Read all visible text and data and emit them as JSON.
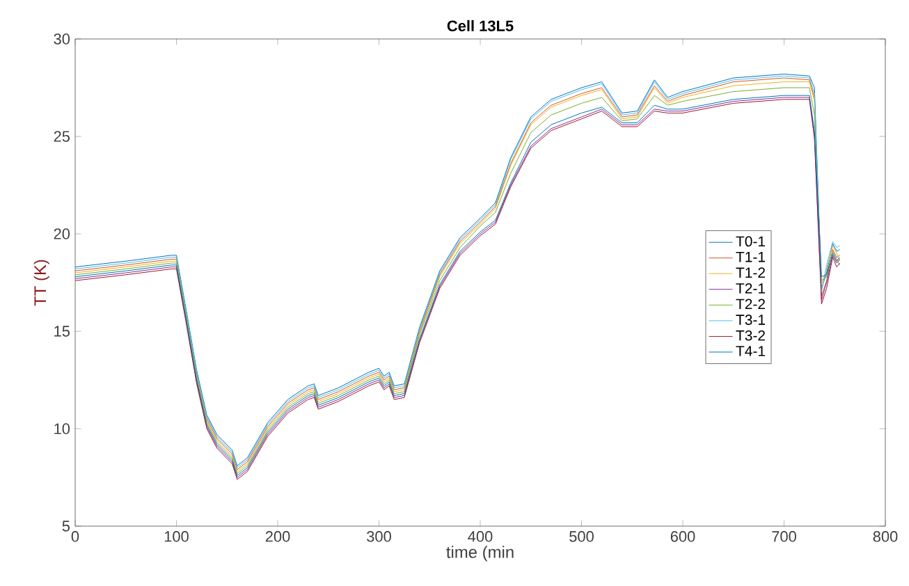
{
  "chart_data": {
    "type": "line",
    "title": "Cell 13L5",
    "xlabel": "time (min",
    "ylabel": "TT (K)",
    "xlim": [
      0,
      800
    ],
    "ylim": [
      5,
      30
    ],
    "xticks": [
      0,
      100,
      200,
      300,
      400,
      500,
      600,
      700,
      800
    ],
    "yticks": [
      5,
      10,
      15,
      20,
      25,
      30
    ],
    "grid": false,
    "legend": "right",
    "marker": "none",
    "line_style": "solid",
    "x": [
      0,
      50,
      95,
      100,
      110,
      120,
      130,
      140,
      155,
      160,
      170,
      190,
      210,
      230,
      236,
      240,
      260,
      290,
      300,
      305,
      310,
      315,
      325,
      340,
      360,
      380,
      400,
      415,
      430,
      450,
      470,
      500,
      520,
      540,
      555,
      572,
      585,
      600,
      650,
      700,
      725,
      730,
      737,
      742,
      748,
      752,
      755
    ],
    "series": [
      {
        "name": "T0-1",
        "color": "#0072bd",
        "values": [
          18.3,
          18.6,
          18.9,
          18.9,
          16.0,
          13.0,
          10.7,
          9.7,
          8.9,
          8.1,
          8.5,
          10.3,
          11.5,
          12.2,
          12.3,
          11.7,
          12.1,
          12.9,
          13.1,
          12.7,
          12.9,
          12.2,
          12.3,
          15.2,
          18.1,
          19.8,
          20.8,
          21.6,
          23.9,
          26.0,
          26.9,
          27.5,
          27.8,
          26.2,
          26.3,
          27.9,
          27.0,
          27.3,
          28.0,
          28.2,
          28.1,
          27.5,
          17.2,
          18.0,
          19.5,
          19.1,
          19.2
        ]
      },
      {
        "name": "T1-1",
        "color": "#d95319",
        "values": [
          18.1,
          18.4,
          18.7,
          18.7,
          15.8,
          12.8,
          10.5,
          9.5,
          8.7,
          7.9,
          8.3,
          10.1,
          11.3,
          12.0,
          12.1,
          11.5,
          11.9,
          12.7,
          12.9,
          12.5,
          12.7,
          12.0,
          12.1,
          15.0,
          17.9,
          19.6,
          20.6,
          21.4,
          23.6,
          25.7,
          26.6,
          27.2,
          27.5,
          26.0,
          26.1,
          27.6,
          26.8,
          27.1,
          27.8,
          28.0,
          27.9,
          27.0,
          16.8,
          17.6,
          19.2,
          18.8,
          18.9
        ]
      },
      {
        "name": "T1-2",
        "color": "#edb120",
        "values": [
          18.0,
          18.3,
          18.6,
          18.6,
          15.7,
          12.7,
          10.4,
          9.4,
          8.6,
          7.8,
          8.2,
          10.0,
          11.2,
          11.9,
          12.0,
          11.4,
          11.8,
          12.6,
          12.8,
          12.4,
          12.6,
          11.9,
          12.0,
          14.9,
          17.8,
          19.5,
          20.5,
          21.3,
          23.5,
          25.6,
          26.5,
          27.1,
          27.4,
          25.9,
          26.0,
          27.5,
          26.7,
          27.0,
          27.6,
          27.8,
          27.8,
          26.8,
          17.4,
          18.2,
          19.4,
          19.0,
          18.6
        ]
      },
      {
        "name": "T2-1",
        "color": "#7e2f8e",
        "values": [
          17.7,
          18.0,
          18.3,
          18.3,
          15.4,
          12.4,
          10.1,
          9.1,
          8.3,
          7.5,
          7.9,
          9.7,
          10.9,
          11.6,
          11.7,
          11.1,
          11.5,
          12.3,
          12.5,
          12.1,
          12.3,
          11.6,
          11.7,
          14.5,
          17.3,
          19.0,
          20.0,
          20.6,
          22.5,
          24.5,
          25.4,
          26.0,
          26.4,
          25.6,
          25.6,
          26.4,
          26.3,
          26.3,
          26.8,
          27.0,
          27.0,
          25.0,
          16.6,
          17.5,
          18.9,
          18.5,
          18.7
        ]
      },
      {
        "name": "T2-2",
        "color": "#77ac30",
        "values": [
          17.9,
          18.2,
          18.5,
          18.5,
          15.6,
          12.6,
          10.3,
          9.3,
          8.5,
          7.7,
          8.1,
          9.9,
          11.1,
          11.8,
          11.9,
          11.3,
          11.7,
          12.5,
          12.7,
          12.3,
          12.5,
          11.8,
          11.9,
          14.8,
          17.6,
          19.3,
          20.4,
          21.1,
          23.1,
          25.2,
          26.1,
          26.7,
          27.0,
          25.8,
          25.9,
          27.1,
          26.6,
          26.8,
          27.3,
          27.5,
          27.5,
          26.1,
          17.6,
          17.8,
          19.1,
          18.7,
          18.4
        ]
      },
      {
        "name": "T3-1",
        "color": "#4dbeee",
        "values": [
          18.2,
          18.5,
          18.8,
          18.8,
          15.9,
          12.9,
          10.6,
          9.6,
          8.8,
          8.0,
          8.4,
          10.2,
          11.4,
          12.1,
          12.2,
          11.6,
          12.0,
          12.8,
          13.0,
          12.6,
          12.8,
          12.1,
          12.2,
          15.1,
          18.0,
          19.7,
          20.7,
          21.5,
          23.8,
          25.9,
          26.8,
          27.4,
          27.7,
          26.1,
          26.2,
          27.8,
          26.9,
          27.2,
          27.9,
          28.1,
          28.0,
          27.2,
          17.0,
          18.4,
          19.6,
          19.3,
          19.4
        ]
      },
      {
        "name": "T3-2",
        "color": "#a2142f",
        "values": [
          17.6,
          17.9,
          18.2,
          18.2,
          15.3,
          12.3,
          10.0,
          9.0,
          8.2,
          7.4,
          7.8,
          9.6,
          10.8,
          11.5,
          11.6,
          11.0,
          11.4,
          12.2,
          12.4,
          12.0,
          12.2,
          11.5,
          11.6,
          14.4,
          17.2,
          18.9,
          19.9,
          20.5,
          22.4,
          24.4,
          25.3,
          25.9,
          26.3,
          25.5,
          25.5,
          26.3,
          26.2,
          26.2,
          26.7,
          26.9,
          26.9,
          24.9,
          16.4,
          17.2,
          18.8,
          18.3,
          18.5
        ]
      },
      {
        "name": "T4-1",
        "color": "#0072bd",
        "values": [
          17.8,
          18.1,
          18.4,
          18.4,
          15.5,
          12.5,
          10.2,
          9.2,
          8.4,
          7.6,
          8.0,
          9.8,
          11.0,
          11.7,
          11.8,
          11.2,
          11.6,
          12.4,
          12.6,
          12.2,
          12.4,
          11.7,
          11.8,
          14.6,
          17.4,
          19.1,
          20.1,
          20.7,
          22.6,
          24.7,
          25.6,
          26.2,
          26.5,
          25.7,
          25.7,
          26.6,
          26.4,
          26.4,
          26.9,
          27.1,
          27.1,
          25.3,
          17.8,
          17.9,
          19.0,
          18.6,
          18.8
        ]
      }
    ]
  }
}
